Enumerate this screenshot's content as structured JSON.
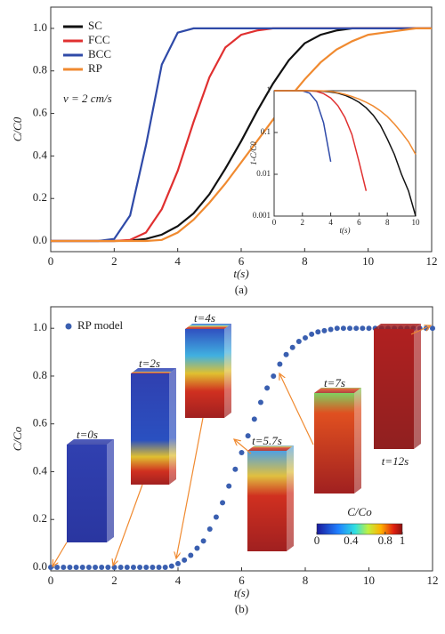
{
  "chart_data": [
    {
      "type": "line",
      "caption": "(a)",
      "xlabel": "t(s)",
      "ylabel": "C/C0",
      "annotation": "v = 2 cm/s",
      "x": [
        0,
        0.5,
        1,
        1.5,
        2,
        2.5,
        3,
        3.5,
        4,
        4.5,
        5,
        5.5,
        6,
        6.5,
        7,
        7.5,
        8,
        8.5,
        9,
        9.5,
        10,
        10.5,
        11,
        11.5,
        12
      ],
      "series": [
        {
          "name": "SC",
          "color": "#111111",
          "values": [
            0,
            0,
            0,
            0,
            0,
            0.002,
            0.01,
            0.03,
            0.07,
            0.13,
            0.22,
            0.34,
            0.47,
            0.61,
            0.74,
            0.85,
            0.93,
            0.97,
            0.99,
            1,
            1,
            1,
            1,
            1,
            1
          ]
        },
        {
          "name": "FCC",
          "color": "#e03030",
          "values": [
            0,
            0,
            0,
            0,
            0,
            0.005,
            0.04,
            0.15,
            0.33,
            0.56,
            0.77,
            0.91,
            0.97,
            0.99,
            1,
            1,
            1,
            1,
            1,
            1,
            1,
            1,
            1,
            1,
            1
          ]
        },
        {
          "name": "BCC",
          "color": "#2f4aa8",
          "values": [
            0,
            0,
            0,
            0,
            0.01,
            0.12,
            0.45,
            0.83,
            0.98,
            1,
            1,
            1,
            1,
            1,
            1,
            1,
            1,
            1,
            1,
            1,
            1,
            1,
            1,
            1,
            1
          ]
        },
        {
          "name": "RP",
          "color": "#f08a30",
          "values": [
            0,
            0,
            0,
            0,
            0,
            0,
            0,
            0.005,
            0.04,
            0.1,
            0.18,
            0.27,
            0.37,
            0.47,
            0.57,
            0.67,
            0.76,
            0.84,
            0.9,
            0.94,
            0.97,
            0.98,
            0.99,
            1,
            1
          ]
        }
      ],
      "xlim": [
        0,
        12
      ],
      "xticks": [
        0,
        2,
        4,
        6,
        8,
        10,
        12
      ],
      "ylim": [
        -0.05,
        1.1
      ],
      "yticks": [
        {
          "value": 0,
          "label": "0.0"
        },
        0.2,
        0.4,
        0.6,
        0.8,
        {
          "value": 1,
          "label": "1.0"
        }
      ],
      "legend": "upper left"
    },
    {
      "type": "line",
      "xlabel": "t(s)",
      "ylabel": "1-C/C0",
      "log_y": true,
      "x": [
        0,
        1,
        2,
        2.5,
        3,
        3.5,
        4,
        4.5,
        5,
        5.5,
        6,
        6.5,
        7,
        7.5,
        8,
        8.5,
        9,
        9.5,
        10
      ],
      "series": [
        {
          "color": "#2f4aa8",
          "values": [
            1,
            1,
            0.99,
            0.88,
            0.55,
            0.17,
            0.02,
            null,
            null,
            null,
            null,
            null,
            null,
            null,
            null,
            null,
            null,
            null,
            null
          ]
        },
        {
          "color": "#e03030",
          "values": [
            1,
            1,
            1,
            0.99,
            0.96,
            0.85,
            0.67,
            0.44,
            0.23,
            0.09,
            0.02,
            0.004,
            null,
            null,
            null,
            null,
            null,
            null,
            null
          ]
        },
        {
          "color": "#111111",
          "values": [
            1,
            1,
            1,
            1,
            0.99,
            0.97,
            0.93,
            0.87,
            0.78,
            0.66,
            0.53,
            0.39,
            0.26,
            0.15,
            0.07,
            0.03,
            0.01,
            0.004,
            0.001
          ]
        },
        {
          "color": "#f08a30",
          "values": [
            1,
            1,
            1,
            1,
            1,
            0.99,
            0.96,
            0.9,
            0.82,
            0.73,
            0.63,
            0.53,
            0.43,
            0.33,
            0.24,
            0.16,
            0.1,
            0.06,
            0.03
          ]
        }
      ],
      "xlim": [
        0,
        10
      ],
      "xticks": [
        0,
        2,
        4,
        6,
        8,
        10
      ],
      "ylim": [
        0.001,
        1
      ],
      "yticks": [
        0.001,
        0.01,
        0.1,
        1
      ]
    },
    {
      "type": "scatter",
      "caption": "(b)",
      "xlabel": "t(s)",
      "ylabel": "C/Co",
      "x": [
        0,
        0.2,
        0.4,
        0.6,
        0.8,
        1,
        1.2,
        1.4,
        1.6,
        1.8,
        2,
        2.2,
        2.4,
        2.6,
        2.8,
        3,
        3.2,
        3.4,
        3.6,
        3.8,
        4,
        4.2,
        4.4,
        4.6,
        4.8,
        5,
        5.2,
        5.4,
        5.6,
        5.8,
        6,
        6.2,
        6.4,
        6.6,
        6.8,
        7,
        7.2,
        7.4,
        7.6,
        7.8,
        8,
        8.2,
        8.4,
        8.6,
        8.8,
        9,
        9.2,
        9.4,
        9.6,
        9.8,
        10,
        10.2,
        10.4,
        10.6,
        10.8,
        11,
        11.2,
        11.4,
        11.6,
        11.8,
        12
      ],
      "series": [
        {
          "name": "RP model",
          "color": "#3a5fb0",
          "values": [
            0,
            0,
            0,
            0,
            0,
            0,
            0,
            0,
            0,
            0,
            0,
            0,
            0,
            0,
            0,
            0,
            0,
            0,
            0,
            0.005,
            0.015,
            0.03,
            0.05,
            0.08,
            0.11,
            0.16,
            0.21,
            0.27,
            0.34,
            0.41,
            0.48,
            0.55,
            0.62,
            0.69,
            0.75,
            0.8,
            0.85,
            0.89,
            0.92,
            0.945,
            0.96,
            0.975,
            0.985,
            0.99,
            0.995,
            1,
            1,
            1,
            1,
            1,
            1,
            1,
            1,
            1,
            1,
            1,
            1,
            1,
            1,
            1,
            1
          ]
        }
      ],
      "xlim": [
        0,
        12
      ],
      "xticks": [
        0,
        2,
        4,
        6,
        8,
        10,
        12
      ],
      "ylim": [
        -0.015,
        1.09
      ],
      "yticks": [
        {
          "value": 0,
          "label": "0.0"
        },
        0.2,
        0.4,
        0.6,
        0.8,
        {
          "value": 1,
          "label": "1.0"
        }
      ],
      "legend": "upper left",
      "annotations": [
        "t=0s",
        "t=2s",
        "t=4s",
        "t=5.7s",
        "t=7s",
        "t=12s"
      ],
      "colorbar": {
        "label": "C/Co",
        "lim": [
          0,
          1
        ],
        "ticks": [
          0,
          0.4,
          0.8,
          1
        ]
      }
    }
  ]
}
